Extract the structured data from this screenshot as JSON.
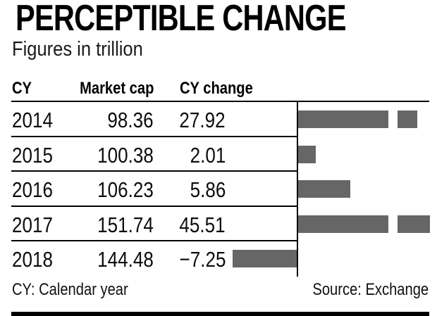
{
  "title": "PERCEPTIBLE CHANGE",
  "subtitle": "Figures in trillion",
  "table": {
    "columns": [
      "CY",
      "Market cap",
      "CY change"
    ],
    "rows": [
      {
        "cy": "2014",
        "market_cap": "98.36",
        "cy_change": "27.92"
      },
      {
        "cy": "2015",
        "market_cap": "100.38",
        "cy_change": "2.01"
      },
      {
        "cy": "2016",
        "market_cap": "106.23",
        "cy_change": "5.86"
      },
      {
        "cy": "2017",
        "market_cap": "151.74",
        "cy_change": "45.51"
      },
      {
        "cy": "2018",
        "market_cap": "144.48",
        "cy_change": "−7.25"
      }
    ]
  },
  "chart_data": {
    "type": "bar",
    "orientation": "horizontal",
    "title": "PERCEPTIBLE CHANGE",
    "subtitle": "Figures in trillion",
    "categories": [
      "2014",
      "2015",
      "2016",
      "2017",
      "2018"
    ],
    "series": [
      {
        "name": "Market cap",
        "values": [
          98.36,
          100.38,
          106.23,
          151.74,
          144.48
        ]
      },
      {
        "name": "CY change",
        "values": [
          27.92,
          2.01,
          5.86,
          45.51,
          -7.25
        ]
      }
    ],
    "plotted_series": "CY change",
    "baseline": 0,
    "grid": false,
    "legend": false,
    "truncated_bars": [
      "2014",
      "2017"
    ],
    "note": "Bars for 27.92 and 45.51 exceed the plot width and are drawn truncated with a detached overflow cap"
  },
  "footer": {
    "note": "CY: Calendar year",
    "source": "Source: Exchange"
  },
  "colors": {
    "bar": "#666666",
    "text": "#0d0d0d",
    "rule": "#000000",
    "background": "#ffffff"
  }
}
